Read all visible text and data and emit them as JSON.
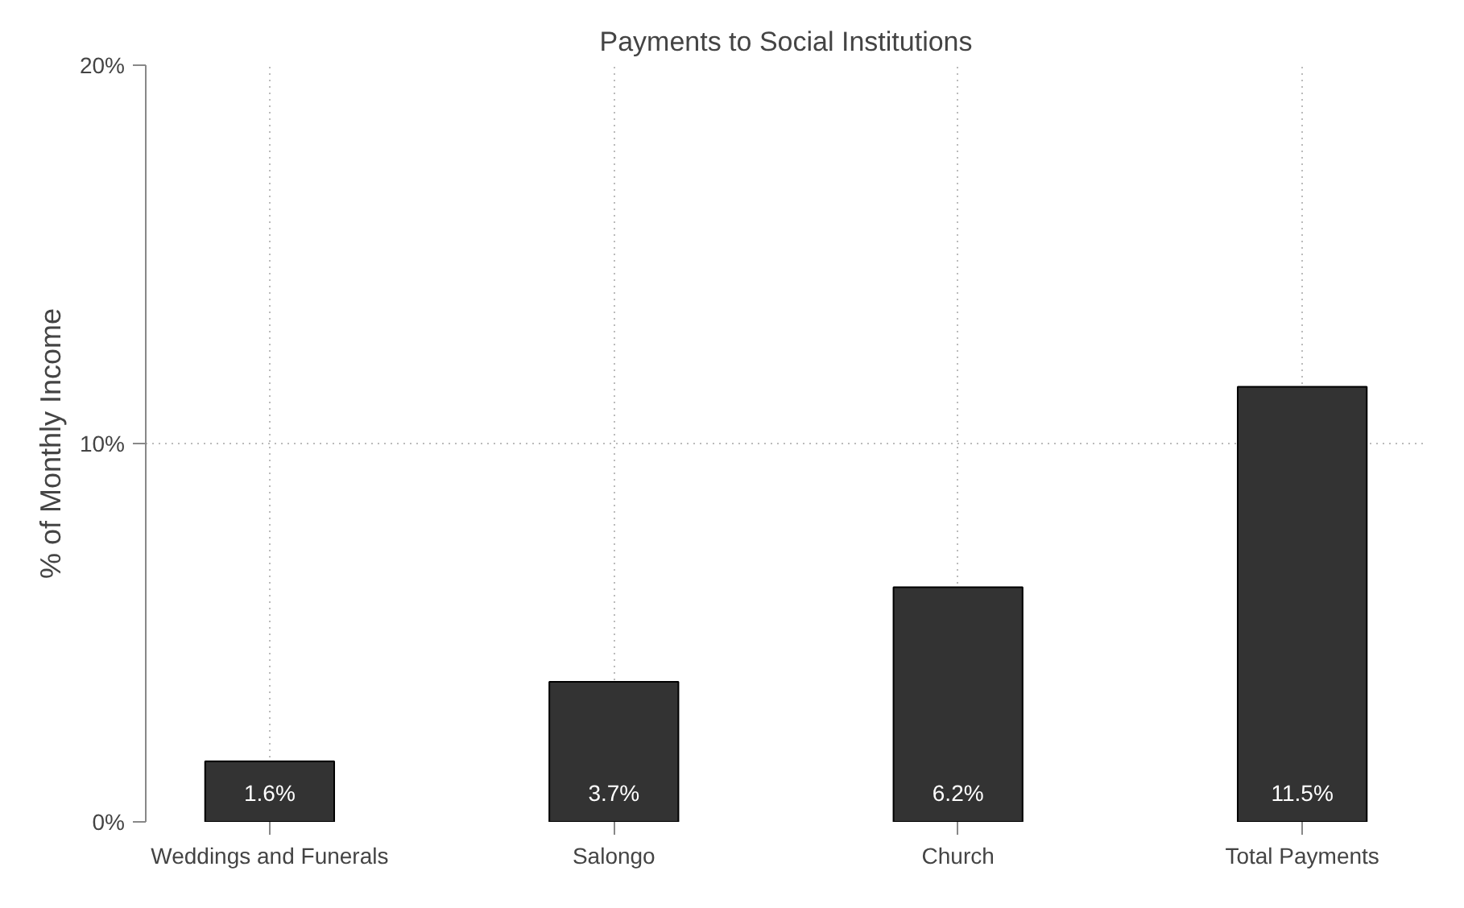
{
  "chart_data": {
    "type": "bar",
    "title": "Payments to Social Institutions",
    "ylabel": "% of Monthly Income",
    "categories": [
      "Weddings and Funerals",
      "Salongo",
      "Church",
      "Total Payments"
    ],
    "values": [
      1.6,
      3.7,
      6.2,
      11.5
    ],
    "color": "#333333",
    "value_labels": [
      "1.6%",
      "3.7%",
      "6.2%",
      "11.5%"
    ],
    "ylim": [
      0,
      20
    ],
    "yticks": [
      {
        "value": 0,
        "label": "0%"
      },
      {
        "value": 10,
        "label": "10%"
      },
      {
        "value": 20,
        "label": "20%"
      }
    ],
    "grid": true
  }
}
